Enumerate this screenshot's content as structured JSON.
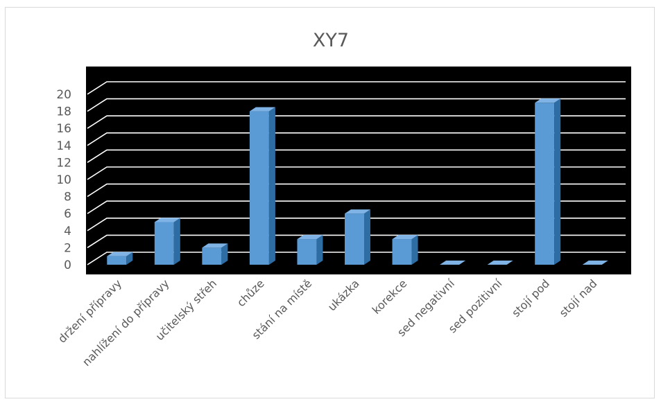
{
  "chart_data": {
    "type": "bar",
    "title": "XY7",
    "xlabel": "",
    "ylabel": "",
    "categories": [
      "držení přípravy",
      "nahlížení do přípravy",
      "učitelský střeh",
      "chůze",
      "stání na místě",
      "ukázka",
      "korekce",
      "sed negativní",
      "sed pozitivní",
      "stojí pod",
      "stojí nad"
    ],
    "values": [
      1,
      5,
      2,
      18,
      3,
      6,
      3,
      0,
      0,
      19,
      0
    ],
    "ylim": [
      0,
      20
    ],
    "yticks": [
      0,
      2,
      4,
      6,
      8,
      10,
      12,
      14,
      16,
      18,
      20
    ],
    "grid": true,
    "legend": "none",
    "style": "3d-column",
    "colors": {
      "bar_front": "#5b9bd5",
      "bar_side": "#2e6da4",
      "bar_top": "#7fb2e5",
      "plot_background": "#000000",
      "gridline": "#ffffff",
      "text": "#595959"
    }
  }
}
